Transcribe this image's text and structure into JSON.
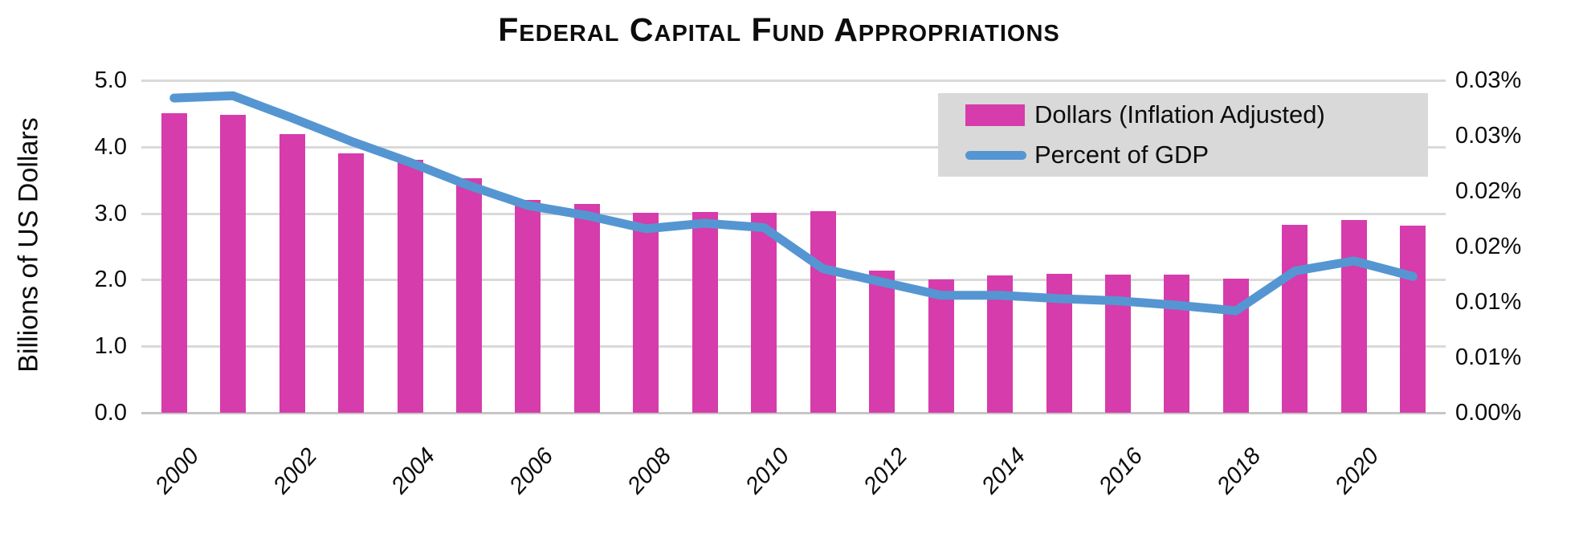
{
  "chart_data": {
    "type": "bar",
    "title": "Federal Capital Fund Appropriations",
    "categories": [
      2000,
      2001,
      2002,
      2003,
      2004,
      2005,
      2006,
      2007,
      2008,
      2009,
      2010,
      2011,
      2012,
      2013,
      2014,
      2015,
      2016,
      2017,
      2018,
      2019,
      2020,
      2021
    ],
    "series": [
      {
        "name": "Dollars (Inflation Adjusted)",
        "type": "bar",
        "axis": "left",
        "color": "#d63cab",
        "values": [
          4.5,
          4.48,
          4.19,
          3.9,
          3.81,
          3.53,
          3.2,
          3.14,
          3.01,
          3.02,
          3.01,
          3.03,
          2.14,
          2.0,
          2.07,
          2.09,
          2.08,
          2.08,
          2.02,
          2.83,
          2.9,
          2.82
        ]
      },
      {
        "name": "Percent of GDP",
        "type": "line",
        "axis": "right",
        "color": "#5596d2",
        "values": [
          0.0284,
          0.0286,
          0.0266,
          0.0245,
          0.0226,
          0.0205,
          0.0187,
          0.0178,
          0.0166,
          0.0171,
          0.0167,
          0.013,
          0.0118,
          0.0106,
          0.0106,
          0.0103,
          0.0101,
          0.0097,
          0.0092,
          0.0128,
          0.0137,
          0.0123
        ]
      }
    ],
    "left_axis": {
      "title": "Billions of US Dollars",
      "min": 0,
      "max": 5,
      "tick_labels": [
        "5.0",
        "4.0",
        "3.0",
        "2.0",
        "1.0",
        "0.0"
      ]
    },
    "right_axis": {
      "min": 0,
      "max": 0.03,
      "tick_labels": [
        "0.03%",
        "0.03%",
        "0.02%",
        "0.02%",
        "0.01%",
        "0.01%",
        "0.00%"
      ]
    },
    "x_axis": {
      "tick_labels": [
        "2000",
        "2002",
        "2004",
        "2006",
        "2008",
        "2010",
        "2012",
        "2014",
        "2016",
        "2018",
        "2020"
      ],
      "label_every_n": 2
    },
    "grid": "horizontal",
    "legend_position": "top-right",
    "legend_background": "#d9d9d9",
    "gridline_color": "#d9d9d9"
  }
}
